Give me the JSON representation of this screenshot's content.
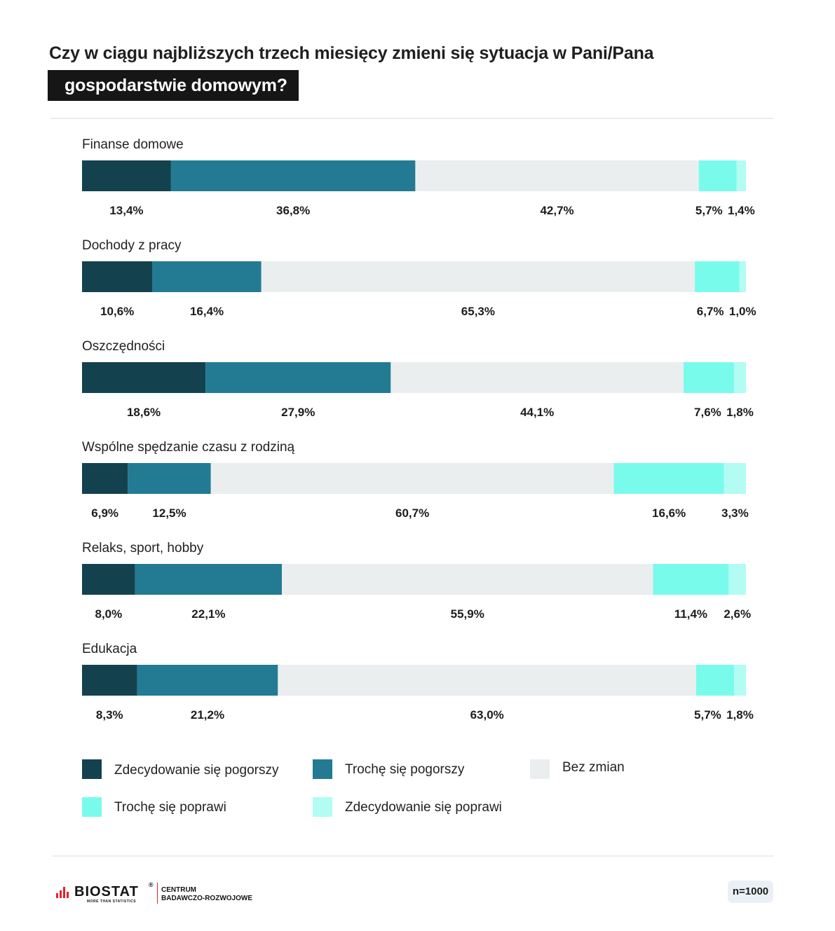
{
  "title": {
    "line1": "Czy w ciągu najbliższych trzech miesięcy zmieni się sytuacja w Pani/Pana",
    "line2": "gospodarstwie domowym?"
  },
  "chart_data": {
    "type": "bar",
    "orientation": "horizontal",
    "stacked": true,
    "categories": [
      "Finanse domowe",
      "Dochody z pracy",
      "Oszczędności",
      "Wspólne spędzanie czasu z rodziną",
      "Relaks, sport, hobby",
      "Edukacja"
    ],
    "series": [
      {
        "name": "Zdecydowanie się pogorszy",
        "color": "#13424e",
        "values": [
          13.4,
          10.6,
          18.6,
          6.9,
          8.0,
          8.3
        ]
      },
      {
        "name": "Trochę się pogorszy",
        "color": "#227b93",
        "values": [
          36.8,
          16.4,
          27.9,
          12.5,
          22.1,
          21.2
        ]
      },
      {
        "name": "Bez zmian",
        "color": "#ebeeee",
        "values": [
          42.7,
          65.3,
          44.1,
          60.7,
          55.9,
          63.0
        ]
      },
      {
        "name": "Trochę się poprawi",
        "color": "#79fbec",
        "values": [
          5.7,
          6.7,
          7.6,
          16.6,
          11.4,
          5.7
        ]
      },
      {
        "name": "Zdecydowanie się poprawi",
        "color": "#b2fcf3",
        "values": [
          1.4,
          1.0,
          1.8,
          3.3,
          2.6,
          1.8
        ]
      }
    ],
    "labels": [
      [
        "13,4%",
        "36,8%",
        "42,7%",
        "5,7%",
        "1,4%"
      ],
      [
        "10,6%",
        "16,4%",
        "65,3%",
        "6,7%",
        "1,0%"
      ],
      [
        "18,6%",
        "27,9%",
        "44,1%",
        "7,6%",
        "1,8%"
      ],
      [
        "6,9%",
        "12,5%",
        "60,7%",
        "16,6%",
        "3,3%"
      ],
      [
        "8,0%",
        "22,1%",
        "55,9%",
        "11,4%",
        "2,6%"
      ],
      [
        "8,3%",
        "21,2%",
        "63,0%",
        "5,7%",
        "1,8%"
      ]
    ],
    "legend_position": "bottom"
  },
  "footer": {
    "brand": "BIOSTAT",
    "registered": "®",
    "tagline": "MORE THAN STATISTICS",
    "centrum_line1": "CENTRUM",
    "centrum_line2": "BADAWCZO-ROZWOJOWE",
    "sample": "n=1000"
  }
}
